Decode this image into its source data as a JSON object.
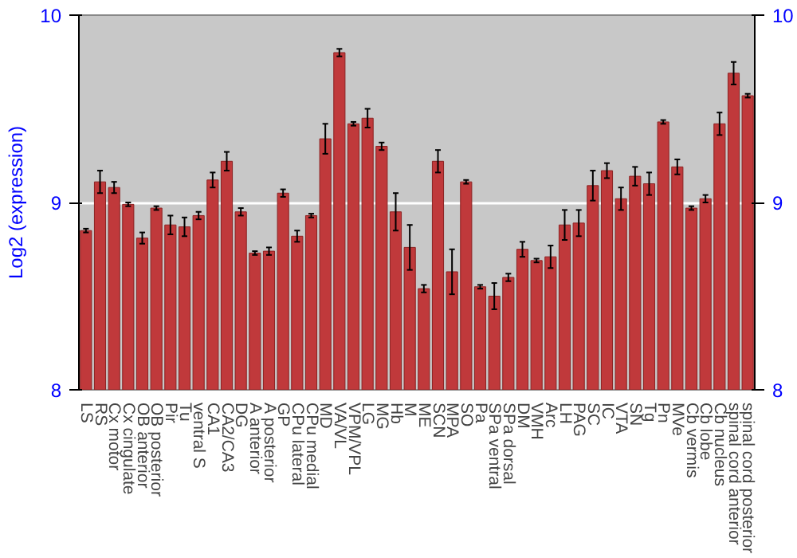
{
  "chart_data": {
    "type": "bar",
    "ylabel": "Log2 (expression)",
    "categories": [
      "LS",
      "RS",
      "Cx motor",
      "Cx cingulate",
      "OB anterior",
      "OB posterior",
      "Pir",
      "Tu",
      "ventral S",
      "CA1",
      "CA2/CA3",
      "DG",
      "A anterior",
      "A posterior",
      "GP",
      "CPu lateral",
      "CPu medial",
      "MD",
      "VA/VL",
      "VPM/VPL",
      "LG",
      "MG",
      "Hb",
      "M",
      "ME",
      "SCN",
      "MPA",
      "SO",
      "Pa",
      "SPa ventral",
      "SPa dorsal",
      "DM",
      "VMH",
      "Arc",
      "LH",
      "PAG",
      "SC",
      "IC",
      "VTA",
      "SN",
      "Tg",
      "Pn",
      "MVe",
      "Cb vermis",
      "Cb lobe",
      "Cb nucleus",
      "spinal cord anterior",
      "spinal cord posterior"
    ],
    "values": [
      8.85,
      9.11,
      9.08,
      8.99,
      8.81,
      8.97,
      8.88,
      8.87,
      8.93,
      9.12,
      9.22,
      8.95,
      8.73,
      8.74,
      9.05,
      8.82,
      8.93,
      9.34,
      9.8,
      9.42,
      9.45,
      9.3,
      8.95,
      8.76,
      8.54,
      9.22,
      8.63,
      9.11,
      8.55,
      8.5,
      8.6,
      8.75,
      8.69,
      8.71,
      8.88,
      8.89,
      9.09,
      9.17,
      9.02,
      9.14,
      9.1,
      9.43,
      9.19,
      8.97,
      9.02,
      9.42,
      9.69,
      9.57
    ],
    "errors": [
      0.01,
      0.06,
      0.03,
      0.01,
      0.03,
      0.01,
      0.05,
      0.05,
      0.02,
      0.04,
      0.05,
      0.02,
      0.01,
      0.02,
      0.02,
      0.03,
      0.01,
      0.08,
      0.02,
      0.01,
      0.05,
      0.02,
      0.1,
      0.12,
      0.02,
      0.06,
      0.12,
      0.01,
      0.01,
      0.07,
      0.02,
      0.04,
      0.01,
      0.06,
      0.08,
      0.07,
      0.08,
      0.04,
      0.06,
      0.05,
      0.06,
      0.01,
      0.04,
      0.01,
      0.02,
      0.06,
      0.06,
      0.01
    ],
    "color": "#c0393b",
    "ylim": [
      8,
      10
    ],
    "yticks": [
      8,
      9,
      10
    ],
    "y2lim": [
      8,
      10
    ],
    "y2ticks": [
      8,
      9,
      10
    ],
    "grid": "y"
  }
}
